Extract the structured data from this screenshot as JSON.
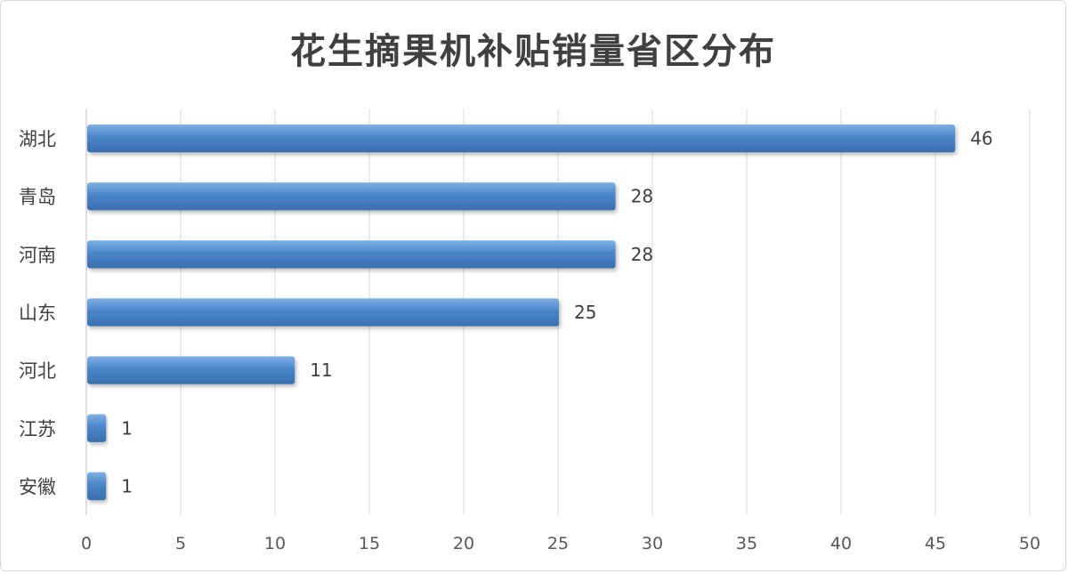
{
  "chart_data": {
    "type": "bar",
    "orientation": "horizontal",
    "title": "花生摘果机补贴销量省区分布",
    "categories": [
      "湖北",
      "青岛",
      "河南",
      "山东",
      "河北",
      "江苏",
      "安徽"
    ],
    "values": [
      46,
      28,
      28,
      25,
      11,
      1,
      1
    ],
    "data_labels": [
      "46",
      "28",
      "28",
      "25",
      "11",
      "1",
      "1"
    ],
    "x_ticks": [
      "0",
      "5",
      "10",
      "15",
      "20",
      "25",
      "30",
      "35",
      "40",
      "45",
      "50"
    ],
    "xlim": [
      0,
      50
    ],
    "xlabel": "",
    "ylabel": "",
    "grid": true,
    "legend": "none",
    "bar_color": "#4a86c8",
    "bar_highlight": "#7fb0e3",
    "grid_color": "#d9d9d9"
  }
}
